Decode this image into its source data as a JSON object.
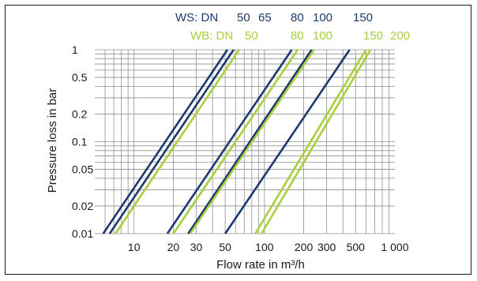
{
  "chart_data": {
    "type": "line",
    "title": "",
    "xlabel": "Flow rate in m³/h",
    "ylabel": "Pressure loss in bar",
    "x_scale": "log",
    "y_scale": "log",
    "xlim": [
      5,
      1000
    ],
    "ylim": [
      0.01,
      1
    ],
    "grid": true,
    "x_ticks": [
      {
        "value": 10,
        "label": "10"
      },
      {
        "value": 20,
        "label": "20"
      },
      {
        "value": 30,
        "label": "30"
      },
      {
        "value": 50,
        "label": "50"
      },
      {
        "value": 100,
        "label": "100"
      },
      {
        "value": 200,
        "label": "200"
      },
      {
        "value": 300,
        "label": "300"
      },
      {
        "value": 500,
        "label": "500"
      },
      {
        "value": 1000,
        "label": "1 000"
      }
    ],
    "y_ticks": [
      {
        "value": 1,
        "label": "1"
      },
      {
        "value": 0.5,
        "label": "0.5"
      },
      {
        "value": 0.2,
        "label": "0.2"
      },
      {
        "value": 0.1,
        "label": "0.1"
      },
      {
        "value": 0.05,
        "label": "0.05"
      },
      {
        "value": 0.02,
        "label": "0.02"
      },
      {
        "value": 0.01,
        "label": "0.01"
      }
    ],
    "top_labels": {
      "ws": {
        "prefix": "WS: DN",
        "sizes": [
          "50",
          "65",
          "80",
          "100",
          "150"
        ],
        "color": "#1c3a6e"
      },
      "wb": {
        "prefix": "WB: DN",
        "sizes": [
          "50",
          "80",
          "100",
          "150",
          "200"
        ],
        "color": "#a9cf3c"
      }
    },
    "series": [
      {
        "group": "WS",
        "dn": "50",
        "color": "#1c3a6e",
        "points": [
          [
            5.8,
            0.01
          ],
          [
            52,
            1
          ]
        ]
      },
      {
        "group": "WS",
        "dn": "65",
        "color": "#1c3a6e",
        "points": [
          [
            6.5,
            0.01
          ],
          [
            58,
            1
          ]
        ]
      },
      {
        "group": "WS",
        "dn": "80",
        "color": "#1c3a6e",
        "points": [
          [
            18,
            0.01
          ],
          [
            162,
            1
          ]
        ]
      },
      {
        "group": "WS",
        "dn": "100",
        "color": "#1c3a6e",
        "points": [
          [
            26,
            0.01
          ],
          [
            230,
            1
          ]
        ]
      },
      {
        "group": "WS",
        "dn": "150",
        "color": "#1c3a6e",
        "points": [
          [
            50,
            0.01
          ],
          [
            450,
            1
          ]
        ]
      },
      {
        "group": "WB",
        "dn": "50",
        "color": "#a9cf3c",
        "points": [
          [
            7.2,
            0.01
          ],
          [
            64,
            1
          ]
        ]
      },
      {
        "group": "WB",
        "dn": "80",
        "color": "#a9cf3c",
        "points": [
          [
            20,
            0.01
          ],
          [
            180,
            1
          ]
        ]
      },
      {
        "group": "WB",
        "dn": "100",
        "color": "#a9cf3c",
        "points": [
          [
            27,
            0.01
          ],
          [
            240,
            1
          ]
        ]
      },
      {
        "group": "WB",
        "dn": "150",
        "color": "#a9cf3c",
        "points": [
          [
            85,
            0.01
          ],
          [
            600,
            1
          ]
        ]
      },
      {
        "group": "WB",
        "dn": "200",
        "color": "#a9cf3c",
        "points": [
          [
            95,
            0.01
          ],
          [
            650,
            1
          ]
        ]
      }
    ]
  }
}
